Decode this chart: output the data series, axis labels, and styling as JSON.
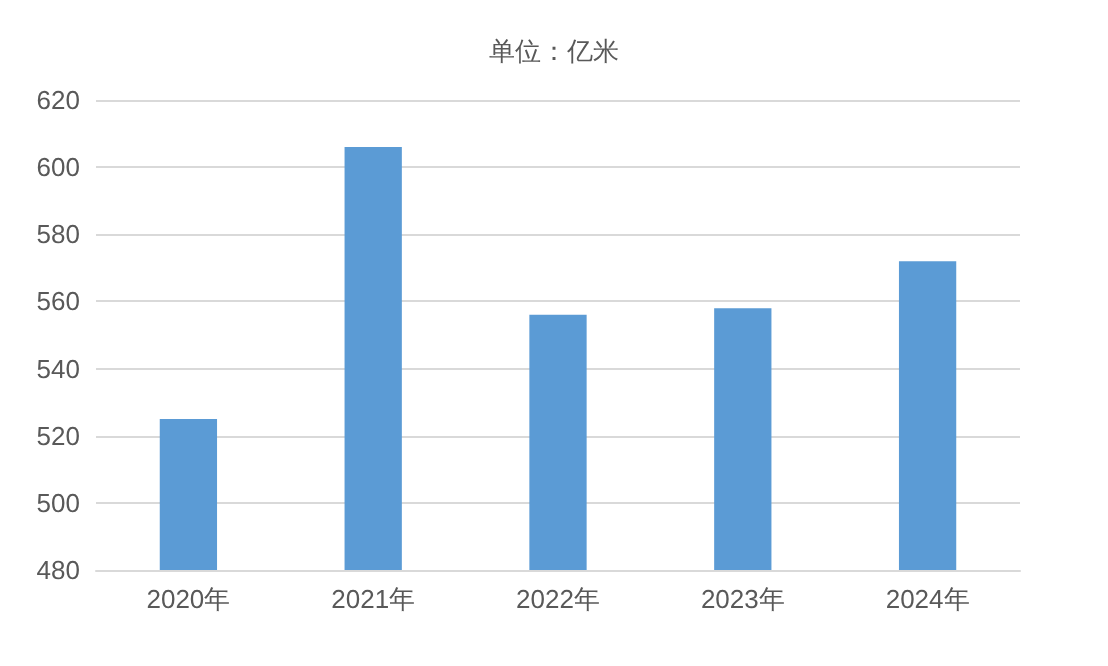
{
  "chart_data": {
    "type": "bar",
    "title": "单位：亿米",
    "categories": [
      "2020年",
      "2021年",
      "2022年",
      "2023年",
      "2024年"
    ],
    "values": [
      525,
      606,
      556,
      558,
      572
    ],
    "color": "#5b9bd5",
    "ylim": [
      480,
      620
    ],
    "yticks": [
      480,
      500,
      520,
      540,
      560,
      580,
      600,
      620
    ],
    "grid": "y"
  }
}
